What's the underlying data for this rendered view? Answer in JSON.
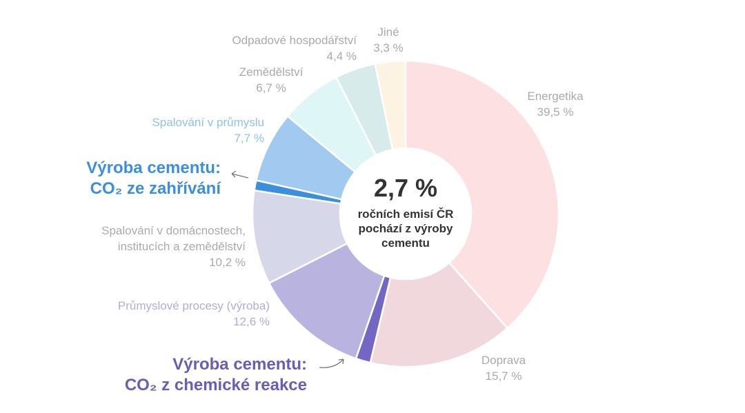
{
  "chart_data": {
    "type": "donut",
    "center_title": "2,7 %",
    "center_text": "ročních emisí ČR\npochází z výroby\ncementu",
    "categories": [
      "Energetika",
      "Doprava",
      "Výroba cementu:\nCO₂ z chemické reakce",
      "Průmyslové procesy (výroba)",
      "Spalování v domácnostech,\ninstitucích a zemědělství",
      "Výroba cementu:\nCO₂ ze zahřívání",
      "Spalování v průmyslu",
      "Zemědělství",
      "Odpadové hospodářství",
      "Jiné"
    ],
    "values": [
      39.5,
      15.7,
      1.6,
      12.6,
      10.2,
      1.1,
      7.7,
      6.7,
      4.4,
      3.3
    ],
    "value_labels": [
      "39,5 %",
      "15,7 %",
      null,
      "12,6 %",
      "10,2 %",
      null,
      "7,7 %",
      "6,7 %",
      "4,4 %",
      "3,3 %"
    ],
    "colors": [
      "#fde0e1",
      "#f1d8dc",
      "#7467c4",
      "#b9b3df",
      "#d7d7ea",
      "#3b8fdc",
      "#a2c9ef",
      "#dff6f6",
      "#d7ecea",
      "#fdf3e2"
    ],
    "label_colors": [
      "#aaaaaa",
      "#aaaaaa",
      "#6a5cb8",
      "#b3abdc",
      "#aaaaaa",
      "#3b8fdc",
      "#8cc2ee",
      "#aaaaaa",
      "#aaaaaa",
      "#aaaaaa"
    ]
  }
}
